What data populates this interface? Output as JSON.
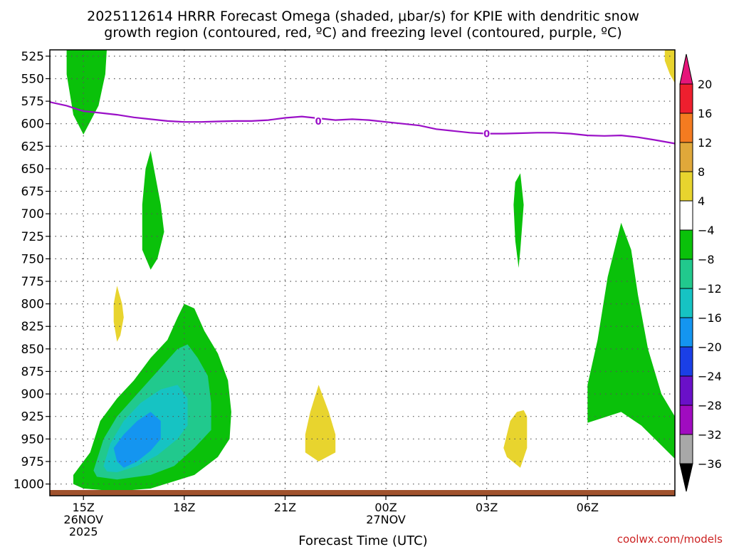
{
  "chart_data": {
    "type": "heatmap",
    "title_line1": "2025112614 HRRR Forecast Omega (shaded, μbar/s) for KPIE with dendritic snow",
    "title_line2": "growth region (contoured, red, ºC) and freezing level (contoured, purple, ºC)",
    "xlabel": "Forecast Time (UTC)",
    "ylabel": "",
    "watermark": "coolwx.com/models",
    "x_range_hours": [
      -1.0,
      17.6
    ],
    "y_range_hpa": [
      518,
      1013
    ],
    "x_ticks": [
      {
        "hour": 0,
        "label": "15Z",
        "date": "26NOV",
        "year": "2025"
      },
      {
        "hour": 3,
        "label": "18Z",
        "date": "",
        "year": ""
      },
      {
        "hour": 6,
        "label": "21Z",
        "date": "",
        "year": ""
      },
      {
        "hour": 9,
        "label": "00Z",
        "date": "27NOV",
        "year": ""
      },
      {
        "hour": 12,
        "label": "03Z",
        "date": "",
        "year": ""
      },
      {
        "hour": 15,
        "label": "06Z",
        "date": "",
        "year": ""
      }
    ],
    "y_ticks": [
      525,
      550,
      575,
      600,
      625,
      650,
      675,
      700,
      725,
      750,
      775,
      800,
      825,
      850,
      875,
      900,
      925,
      950,
      975,
      1000
    ],
    "colorbar": {
      "labels": [
        "20",
        "16",
        "12",
        "8",
        "4",
        "−4",
        "−8",
        "−12",
        "−16",
        "−20",
        "−24",
        "−28",
        "−32",
        "−36"
      ],
      "colors": [
        "#ee1f2e",
        "#f47b20",
        "#e0a83a",
        "#e8d42e",
        "#ffffff",
        "#0ac10a",
        "#21c98d",
        "#16c3c3",
        "#1495f0",
        "#1a3fe6",
        "#6a10c8",
        "#a00bc0",
        "#a8a8a8"
      ],
      "top_arrow_color": "#e6157a",
      "bottom_arrow_color": "#000000"
    },
    "colors": {
      "green": "#0ac10a",
      "seafoam": "#21c98d",
      "teal": "#16c3c3",
      "blue": "#1495f0",
      "yellow": "#e8d42e",
      "freezing": "#9a0fc7",
      "ground": "#a0522d",
      "watermark": "#cc2222"
    },
    "freezing_level": {
      "label": "0",
      "label_points": [
        {
          "hour": 6.99,
          "hpa": 597
        },
        {
          "hour": 12.0,
          "hpa": 611
        }
      ],
      "points": [
        [
          -1.0,
          576
        ],
        [
          -0.5,
          580
        ],
        [
          0.0,
          586
        ],
        [
          0.5,
          588
        ],
        [
          1.0,
          590
        ],
        [
          1.5,
          593
        ],
        [
          2.0,
          595
        ],
        [
          2.5,
          597
        ],
        [
          3.0,
          598
        ],
        [
          3.5,
          598
        ],
        [
          4.0,
          597.5
        ],
        [
          4.5,
          597
        ],
        [
          5.0,
          597
        ],
        [
          5.5,
          596
        ],
        [
          6.0,
          593.5
        ],
        [
          6.5,
          592
        ],
        [
          7.0,
          594
        ],
        [
          7.5,
          596
        ],
        [
          8.0,
          595
        ],
        [
          8.5,
          596
        ],
        [
          9.0,
          598
        ],
        [
          9.5,
          600
        ],
        [
          10.0,
          602
        ],
        [
          10.5,
          606
        ],
        [
          11.0,
          608
        ],
        [
          11.5,
          610
        ],
        [
          12.0,
          611
        ],
        [
          12.5,
          611
        ],
        [
          13.0,
          610.5
        ],
        [
          13.5,
          610
        ],
        [
          14.0,
          610
        ],
        [
          14.5,
          611
        ],
        [
          15.0,
          613
        ],
        [
          15.5,
          613.5
        ],
        [
          16.0,
          613
        ],
        [
          16.5,
          615
        ],
        [
          17.0,
          618
        ],
        [
          17.6,
          622
        ]
      ]
    },
    "omega_regions": [
      {
        "level": -4,
        "color": "green",
        "points": [
          [
            -0.5,
            515
          ],
          [
            0.7,
            515
          ],
          [
            0.65,
            545
          ],
          [
            0.45,
            580
          ],
          [
            0.0,
            612
          ],
          [
            -0.3,
            590
          ],
          [
            -0.5,
            545
          ]
        ]
      },
      {
        "level": -4,
        "color": "green",
        "points": [
          [
            2.0,
            630
          ],
          [
            2.3,
            690
          ],
          [
            2.4,
            720
          ],
          [
            2.2,
            750
          ],
          [
            2.0,
            762
          ],
          [
            1.75,
            740
          ],
          [
            1.75,
            690
          ],
          [
            1.85,
            650
          ]
        ]
      },
      {
        "level": -4,
        "color": "green",
        "points": [
          [
            13.0,
            655
          ],
          [
            13.1,
            690
          ],
          [
            13.0,
            740
          ],
          [
            12.95,
            760
          ],
          [
            12.85,
            730
          ],
          [
            12.8,
            690
          ],
          [
            12.85,
            665
          ]
        ]
      },
      {
        "level": -4,
        "color": "green",
        "points": [
          [
            16.0,
            710
          ],
          [
            16.3,
            740
          ],
          [
            16.5,
            790
          ],
          [
            16.8,
            850
          ],
          [
            17.2,
            900
          ],
          [
            17.6,
            925
          ],
          [
            17.6,
            972
          ],
          [
            16.6,
            935
          ],
          [
            16.0,
            920
          ],
          [
            15.0,
            932
          ],
          [
            15.0,
            890
          ],
          [
            15.3,
            840
          ],
          [
            15.6,
            770
          ]
        ]
      },
      {
        "level": -4,
        "color": "green",
        "points": [
          [
            -0.3,
            990
          ],
          [
            0.2,
            965
          ],
          [
            0.5,
            930
          ],
          [
            1.0,
            905
          ],
          [
            1.5,
            885
          ],
          [
            2.0,
            860
          ],
          [
            2.5,
            840
          ],
          [
            2.8,
            815
          ],
          [
            3.0,
            800
          ],
          [
            3.3,
            805
          ],
          [
            3.6,
            830
          ],
          [
            4.0,
            855
          ],
          [
            4.3,
            885
          ],
          [
            4.4,
            920
          ],
          [
            4.35,
            950
          ],
          [
            4.0,
            970
          ],
          [
            3.3,
            990
          ],
          [
            2.0,
            1005
          ],
          [
            1.0,
            1008
          ],
          [
            0.0,
            1005
          ],
          [
            -0.3,
            1000
          ]
        ]
      },
      {
        "level": -8,
        "color": "seafoam",
        "points": [
          [
            0.3,
            985
          ],
          [
            0.6,
            950
          ],
          [
            1.0,
            925
          ],
          [
            1.6,
            900
          ],
          [
            2.2,
            875
          ],
          [
            2.8,
            850
          ],
          [
            3.1,
            845
          ],
          [
            3.4,
            860
          ],
          [
            3.7,
            880
          ],
          [
            3.8,
            910
          ],
          [
            3.8,
            940
          ],
          [
            3.3,
            960
          ],
          [
            2.7,
            980
          ],
          [
            2.0,
            990
          ],
          [
            1.0,
            995
          ],
          [
            0.4,
            992
          ]
        ]
      },
      {
        "level": -12,
        "color": "teal",
        "points": [
          [
            0.6,
            980
          ],
          [
            0.8,
            955
          ],
          [
            1.2,
            930
          ],
          [
            1.7,
            910
          ],
          [
            2.3,
            895
          ],
          [
            2.8,
            890
          ],
          [
            3.1,
            905
          ],
          [
            3.1,
            935
          ],
          [
            2.8,
            950
          ],
          [
            2.2,
            968
          ],
          [
            1.6,
            980
          ],
          [
            1.0,
            987
          ],
          [
            0.7,
            986
          ]
        ]
      },
      {
        "level": -16,
        "color": "blue",
        "points": [
          [
            1.0,
            975
          ],
          [
            0.9,
            960
          ],
          [
            1.2,
            945
          ],
          [
            1.6,
            930
          ],
          [
            2.0,
            920
          ],
          [
            2.3,
            930
          ],
          [
            2.3,
            950
          ],
          [
            2.0,
            963
          ],
          [
            1.6,
            975
          ],
          [
            1.2,
            982
          ]
        ]
      },
      {
        "level": 4,
        "color": "yellow",
        "points": [
          [
            1.0,
            780
          ],
          [
            1.15,
            800
          ],
          [
            1.2,
            815
          ],
          [
            1.1,
            835
          ],
          [
            1.0,
            842
          ],
          [
            0.9,
            820
          ],
          [
            0.9,
            800
          ]
        ]
      },
      {
        "level": 4,
        "color": "yellow",
        "points": [
          [
            7.0,
            890
          ],
          [
            7.3,
            920
          ],
          [
            7.5,
            945
          ],
          [
            7.5,
            965
          ],
          [
            7.0,
            975
          ],
          [
            6.6,
            965
          ],
          [
            6.6,
            945
          ],
          [
            6.75,
            920
          ]
        ]
      },
      {
        "level": 4,
        "color": "yellow",
        "points": [
          [
            13.2,
            925
          ],
          [
            13.2,
            960
          ],
          [
            13.0,
            982
          ],
          [
            12.6,
            970
          ],
          [
            12.5,
            960
          ],
          [
            12.7,
            930
          ],
          [
            12.9,
            920
          ],
          [
            13.1,
            918
          ]
        ]
      },
      {
        "level": 4,
        "color": "yellow",
        "points": [
          [
            17.3,
            515
          ],
          [
            17.6,
            515
          ],
          [
            17.6,
            555
          ],
          [
            17.45,
            545
          ],
          [
            17.3,
            530
          ]
        ]
      }
    ]
  }
}
